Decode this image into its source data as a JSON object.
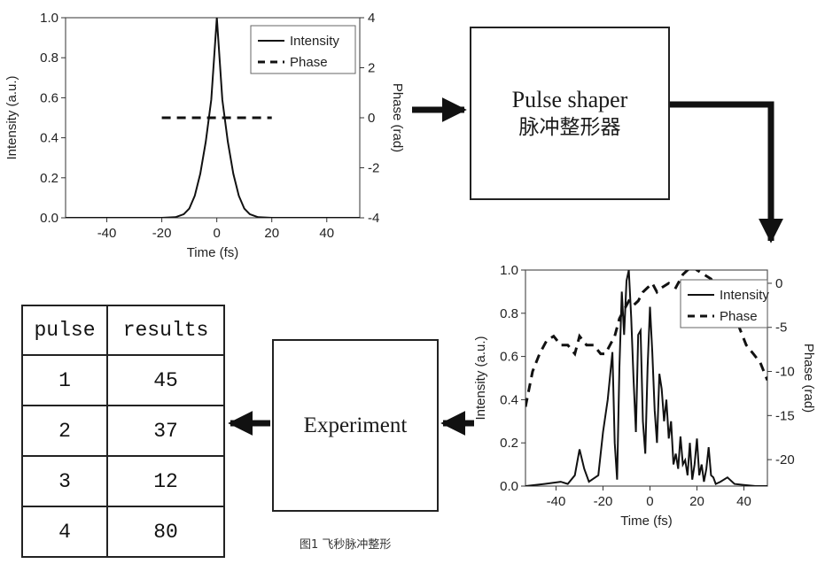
{
  "input_chart": {
    "type": "line",
    "xlabel": "Time (fs)",
    "ylabel": "Intensity (a.u.)",
    "y2label": "Phase (rad)",
    "xlim": [
      -55,
      52
    ],
    "ylim": [
      0,
      1.0
    ],
    "y2lim": [
      -4,
      4
    ],
    "xticks": [
      -40,
      -20,
      0,
      20,
      40
    ],
    "yticks": [
      0.0,
      0.2,
      0.4,
      0.6,
      0.8,
      1.0
    ],
    "y2ticks": [
      -4,
      -2,
      0,
      2,
      4
    ],
    "legend_position": "top-right",
    "series": [
      {
        "name": "Intensity",
        "style": "solid",
        "axis": "left",
        "x": [
          -55,
          -20,
          -15,
          -12,
          -10,
          -8,
          -6,
          -4,
          -2,
          0,
          2,
          4,
          6,
          8,
          10,
          12,
          15,
          20,
          52
        ],
        "y": [
          0,
          0,
          0.003,
          0.018,
          0.046,
          0.11,
          0.22,
          0.38,
          0.59,
          1.0,
          0.59,
          0.38,
          0.22,
          0.11,
          0.046,
          0.018,
          0.003,
          0,
          0
        ]
      },
      {
        "name": "Phase",
        "style": "dashed",
        "axis": "right",
        "x": [
          -20,
          20
        ],
        "y": [
          0,
          0
        ]
      }
    ]
  },
  "output_chart": {
    "type": "line",
    "xlabel": "Time (fs)",
    "ylabel": "Intensity (a.u.)",
    "y2label": "Phase (rad)",
    "xlim": [
      -53,
      50
    ],
    "ylim": [
      0,
      1.0
    ],
    "y2lim": [
      -23,
      1.5
    ],
    "xticks": [
      -40,
      -20,
      0,
      20,
      40
    ],
    "yticks": [
      0.0,
      0.2,
      0.4,
      0.6,
      0.8,
      1.0
    ],
    "y2ticks": [
      0,
      -5,
      -10,
      -15,
      -20
    ],
    "legend_position": "top-right",
    "series": [
      {
        "name": "Intensity",
        "style": "solid",
        "axis": "left",
        "x": [
          -53,
          -45,
          -38,
          -35,
          -32,
          -30,
          -28,
          -26,
          -22,
          -20,
          -18,
          -16,
          -15,
          -14,
          -13,
          -12,
          -11,
          -10,
          -9,
          -8,
          -7,
          -6,
          -5,
          -4,
          -3,
          -2,
          -1,
          0,
          1,
          2,
          3,
          4,
          5,
          6,
          7,
          8,
          9,
          10,
          11,
          12,
          13,
          14,
          15,
          16,
          17,
          18,
          19,
          20,
          21,
          22,
          23,
          24,
          25,
          26,
          27,
          28,
          30,
          33,
          36,
          40,
          45,
          50
        ],
        "y": [
          0,
          0.01,
          0.02,
          0.01,
          0.05,
          0.17,
          0.08,
          0.02,
          0.05,
          0.25,
          0.4,
          0.62,
          0.2,
          0.03,
          0.55,
          0.9,
          0.7,
          0.95,
          1.0,
          0.78,
          0.5,
          0.25,
          0.7,
          0.72,
          0.3,
          0.15,
          0.55,
          0.83,
          0.62,
          0.35,
          0.2,
          0.52,
          0.45,
          0.3,
          0.4,
          0.22,
          0.3,
          0.1,
          0.15,
          0.08,
          0.23,
          0.1,
          0.12,
          0.05,
          0.2,
          0.03,
          0.1,
          0.22,
          0.05,
          0.1,
          0.02,
          0.08,
          0.18,
          0.05,
          0.04,
          0.01,
          0.02,
          0.04,
          0.01,
          0.005,
          0,
          0
        ]
      },
      {
        "name": "Phase",
        "style": "dashed",
        "axis": "right",
        "x": [
          -53,
          -50,
          -47,
          -44,
          -41,
          -38,
          -35,
          -32,
          -30,
          -27,
          -24,
          -21,
          -19,
          -17,
          -15,
          -13,
          -11,
          -9,
          -7,
          -5,
          -3,
          -1,
          1,
          3,
          5,
          8,
          11,
          14,
          16,
          18,
          20,
          23,
          26,
          29,
          32,
          35,
          38,
          41,
          44,
          47,
          50
        ],
        "y": [
          -14,
          -10,
          -8,
          -6.5,
          -6,
          -7,
          -7,
          -8,
          -6,
          -7,
          -7,
          -8,
          -8,
          -7,
          -6,
          -4,
          -3,
          -2,
          -2.5,
          -2,
          -1,
          -0.5,
          0,
          -1,
          -0.5,
          0,
          -0.5,
          1,
          1.5,
          2,
          1.5,
          1,
          0.5,
          -1,
          -2,
          -3,
          -5,
          -7,
          -8,
          -9,
          -11
        ]
      }
    ]
  },
  "shaper_box": {
    "line1": "Pulse shaper",
    "line2": "脉冲整形器"
  },
  "experiment_box": {
    "label": "Experiment"
  },
  "table": {
    "headers": [
      "pulse",
      "results"
    ],
    "rows": [
      {
        "pulse": "1",
        "result": "45"
      },
      {
        "pulse": "2",
        "result": "37"
      },
      {
        "pulse": "3",
        "result": "12"
      },
      {
        "pulse": "4",
        "result": "80"
      }
    ]
  },
  "caption": "图1 飞秒脉冲整形"
}
